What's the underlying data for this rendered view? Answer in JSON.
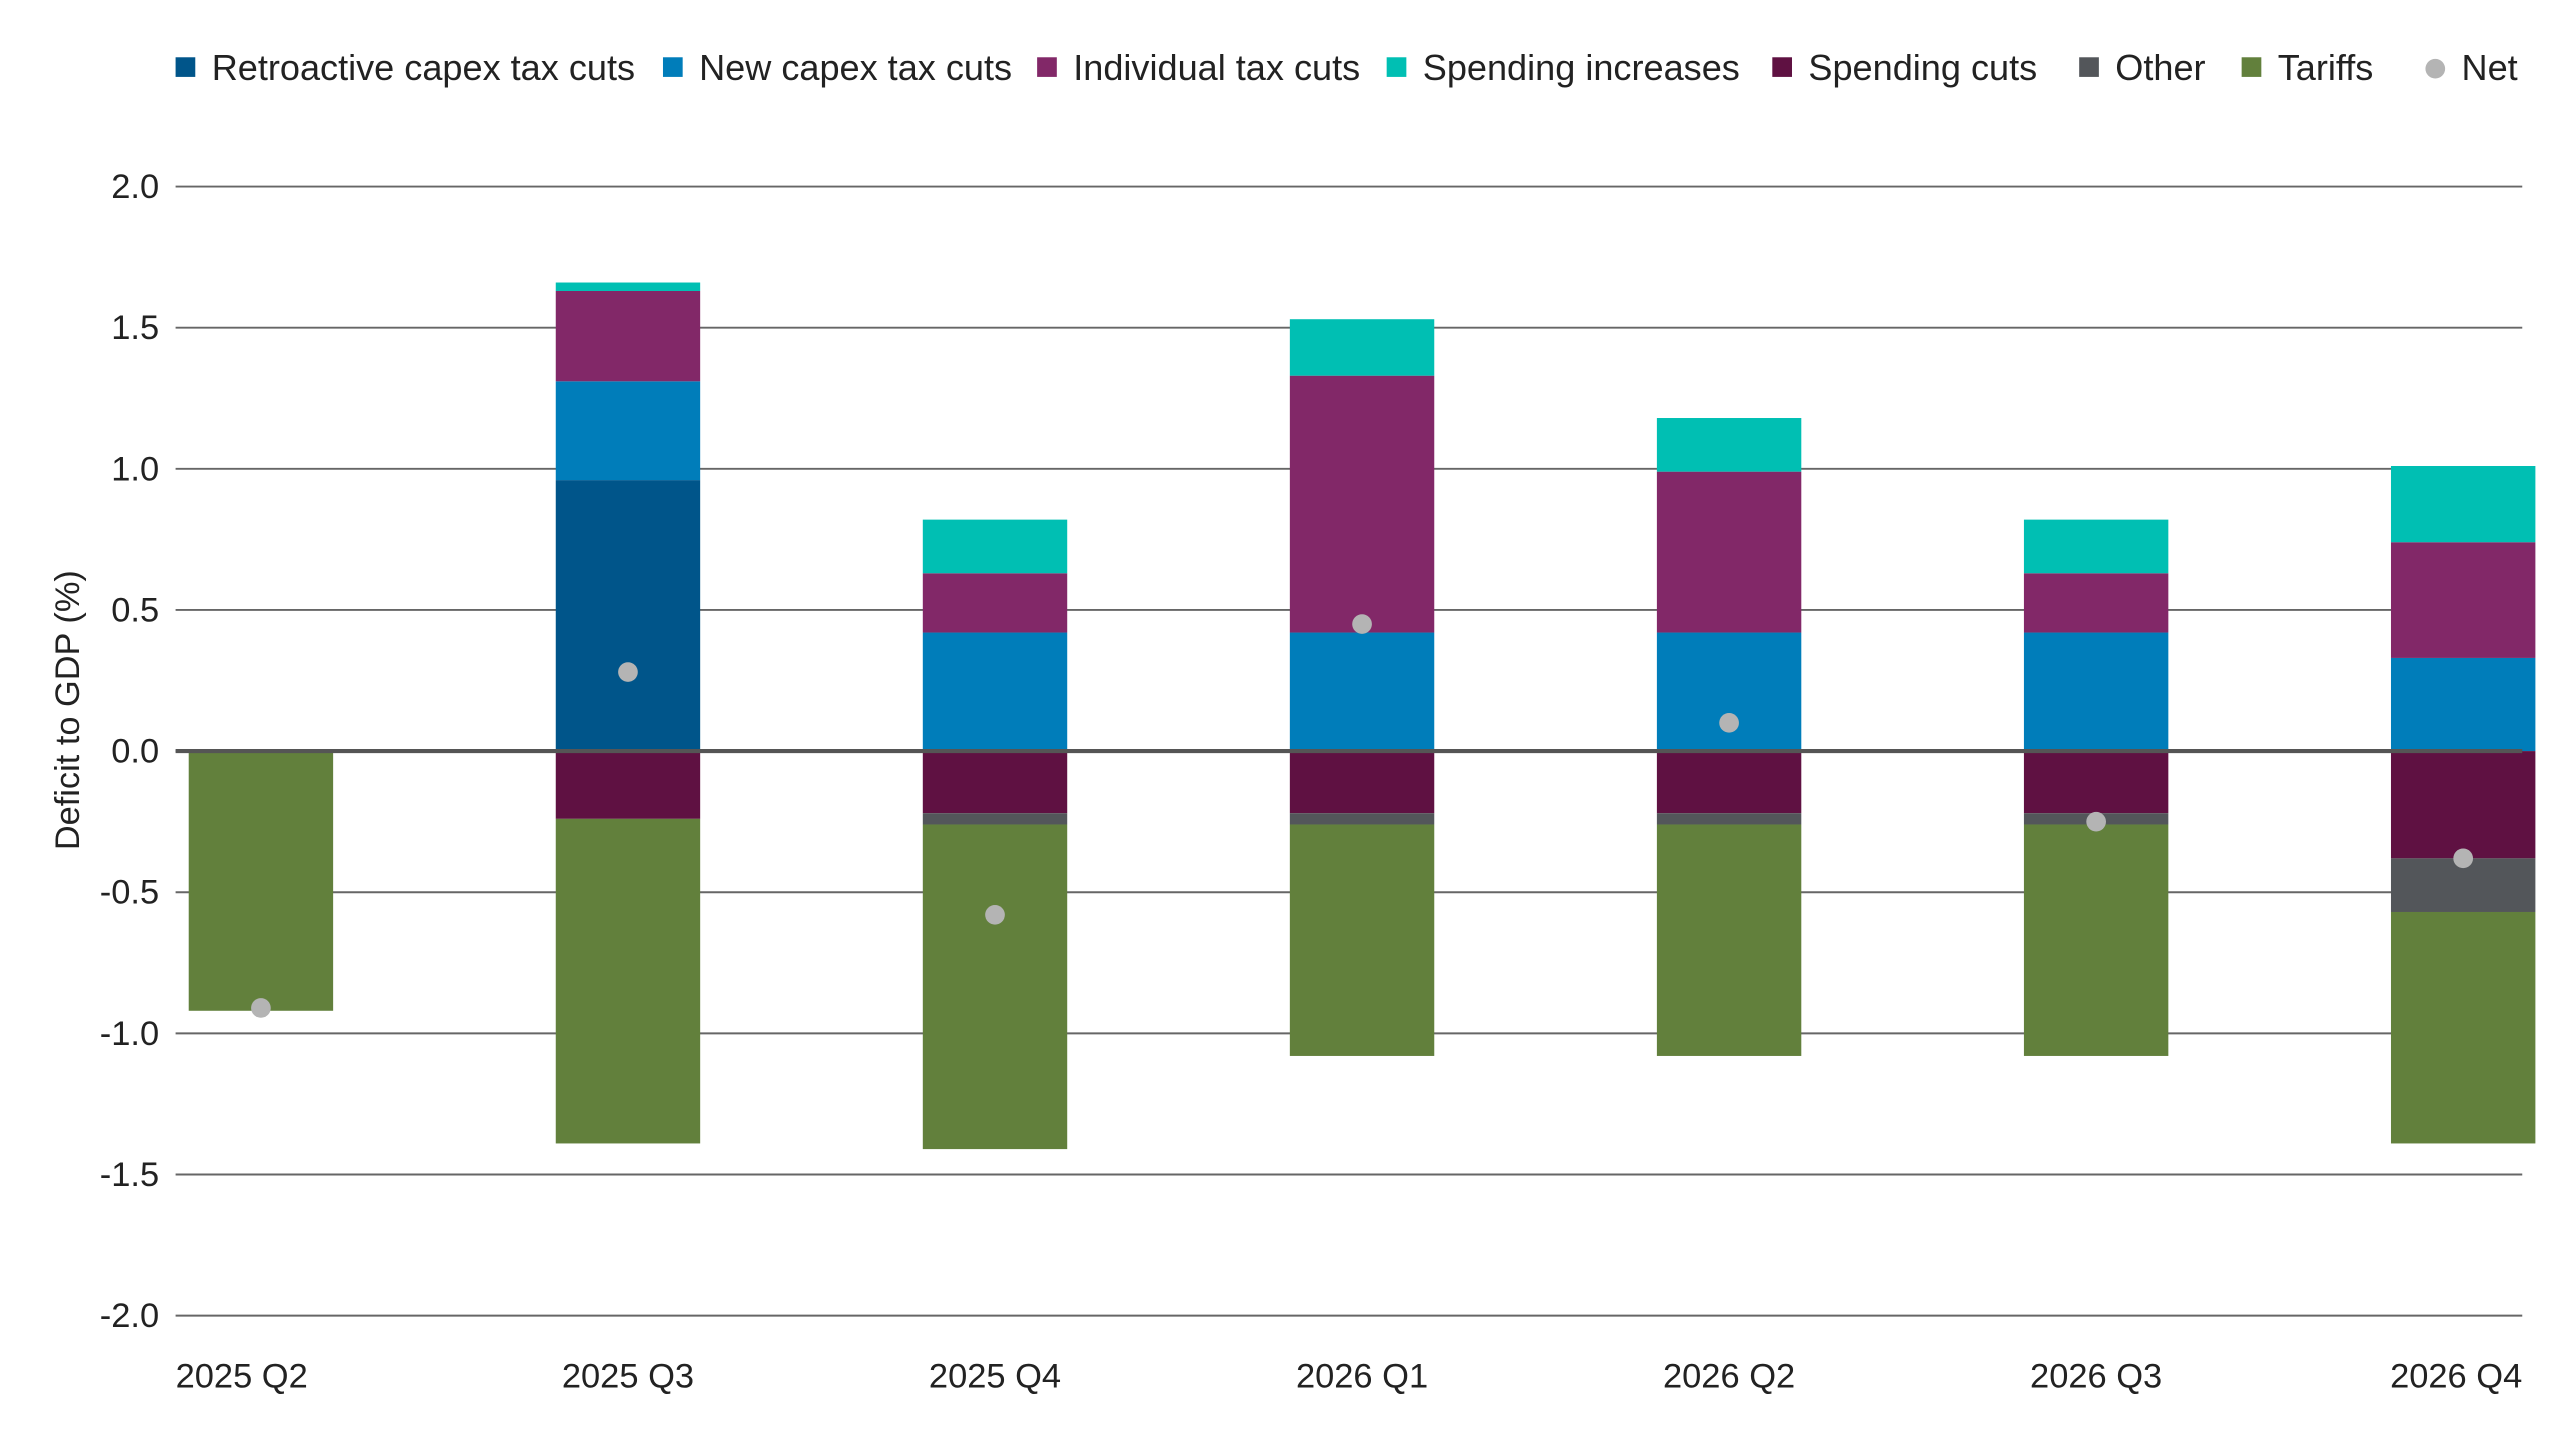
{
  "chart_data": {
    "type": "bar",
    "stacked": true,
    "title": "",
    "xlabel": "",
    "ylabel": "Deficit to GDP (%)",
    "ylim": [
      -2.0,
      2.0
    ],
    "yticks": [
      "2.0",
      "1.5",
      "1.0",
      "0.5",
      "0.0",
      "-0.5",
      "-1.0",
      "-1.5",
      "-2.0"
    ],
    "ytick_values": [
      2.0,
      1.5,
      1.0,
      0.5,
      0.0,
      -0.5,
      -1.0,
      -1.5,
      -2.0
    ],
    "grid": true,
    "legend_position": "top",
    "categories": [
      "2025 Q2",
      "2025 Q3",
      "2025 Q4",
      "2026 Q1",
      "2026 Q2",
      "2026 Q3",
      "2026 Q4"
    ],
    "series": [
      {
        "name": "Retroactive capex tax cuts",
        "color": "#00558a",
        "values": [
          0,
          0.96,
          0,
          0,
          0,
          0,
          0
        ]
      },
      {
        "name": "New capex tax cuts",
        "color": "#007dba",
        "values": [
          0,
          0.35,
          0.42,
          0.42,
          0.42,
          0.42,
          0.33
        ]
      },
      {
        "name": "Individual tax cuts",
        "color": "#822868",
        "values": [
          0,
          0.32,
          0.21,
          0.91,
          0.57,
          0.21,
          0.41
        ]
      },
      {
        "name": "Spending increases",
        "color": "#00bfb3",
        "values": [
          0,
          0.03,
          0.19,
          0.2,
          0.19,
          0.19,
          0.27
        ]
      },
      {
        "name": "Spending cuts",
        "color": "#5f1142",
        "values": [
          0,
          -0.24,
          -0.22,
          -0.22,
          -0.22,
          -0.22,
          -0.38
        ]
      },
      {
        "name": "Other",
        "color": "#53565a",
        "values": [
          0,
          0,
          -0.04,
          -0.04,
          -0.04,
          -0.04,
          -0.19
        ]
      },
      {
        "name": "Tariffs",
        "color": "#62803c",
        "values": [
          -0.92,
          -1.15,
          -1.15,
          -0.82,
          -0.82,
          -0.82,
          -0.82
        ]
      }
    ],
    "net": {
      "name": "Net",
      "color": "#b4b4b4",
      "values": [
        -0.91,
        0.28,
        -0.58,
        0.45,
        0.1,
        -0.25,
        -0.38
      ]
    }
  }
}
